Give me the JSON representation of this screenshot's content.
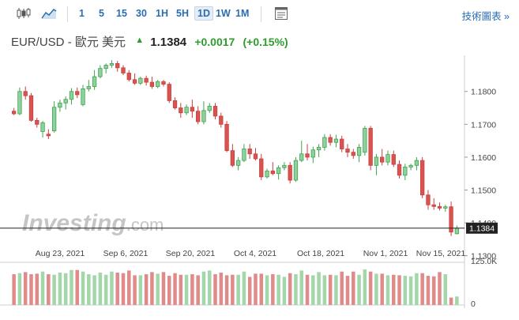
{
  "toolbar": {
    "icons": [
      "candlestick-chart-icon",
      "area-chart-icon",
      "settings-panel-icon"
    ],
    "timeframes": [
      "1",
      "5",
      "15",
      "30",
      "1H",
      "5H",
      "1D",
      "1W",
      "1M"
    ],
    "active_timeframe": "1D",
    "tech_chart_label": "技術圖表 »"
  },
  "header": {
    "pair": "EUR/USD",
    "dash": "-",
    "name": "歐元 美元",
    "price": "1.1384",
    "change": "+0.0017",
    "change_pct": "(+0.15%)",
    "up_color": "#2e9c2e"
  },
  "chart_data": {
    "type": "candlestick",
    "y_ticks": [
      "1.1800",
      "1.1700",
      "1.1600",
      "1.1500",
      "1.1400",
      "1.1300"
    ],
    "ylim": [
      1.128,
      1.191
    ],
    "x_labels": [
      "Aug 23, 2021",
      "Sep 6, 2021",
      "Sep 20, 2021",
      "Oct 4, 2021",
      "Oct 18, 2021",
      "Nov 1, 2021",
      "Nov 15, 2021"
    ],
    "last_price_label": "1.1384",
    "volume_ticks": [
      "125.0K",
      "0"
    ],
    "watermark": "Investing.com",
    "colors": {
      "up": "#3fa34d",
      "down": "#c9403f",
      "up_fill": "#8fd19e",
      "down_fill": "#d9534f",
      "vol_up": "#a3d6a8",
      "vol_down": "#e08b89"
    },
    "candles": [
      [
        1.174,
        1.175,
        1.1728,
        1.1732
      ],
      [
        1.1732,
        1.1812,
        1.1728,
        1.18
      ],
      [
        1.18,
        1.1815,
        1.1775,
        1.1787
      ],
      [
        1.1787,
        1.1795,
        1.1708,
        1.1712
      ],
      [
        1.1712,
        1.172,
        1.169,
        1.17
      ],
      [
        1.1678,
        1.171,
        1.166,
        1.1705
      ],
      [
        1.167,
        1.1685,
        1.1655,
        1.1665
      ],
      [
        1.168,
        1.177,
        1.1675,
        1.1752
      ],
      [
        1.1752,
        1.1775,
        1.1738,
        1.1765
      ],
      [
        1.1765,
        1.1785,
        1.1745,
        1.1776
      ],
      [
        1.1776,
        1.181,
        1.176,
        1.18
      ],
      [
        1.18,
        1.1812,
        1.178,
        1.179
      ],
      [
        1.176,
        1.182,
        1.1755,
        1.1808
      ],
      [
        1.1808,
        1.1835,
        1.18,
        1.1815
      ],
      [
        1.1815,
        1.1865,
        1.1805,
        1.1845
      ],
      [
        1.1845,
        1.188,
        1.184,
        1.187
      ],
      [
        1.187,
        1.1885,
        1.1855,
        1.188
      ],
      [
        1.188,
        1.1895,
        1.1872,
        1.1885
      ],
      [
        1.1885,
        1.1893,
        1.186,
        1.1872
      ],
      [
        1.1872,
        1.188,
        1.185,
        1.1856
      ],
      [
        1.1856,
        1.1865,
        1.183,
        1.1836
      ],
      [
        1.1836,
        1.1855,
        1.182,
        1.1825
      ],
      [
        1.1825,
        1.1845,
        1.182,
        1.184
      ],
      [
        1.184,
        1.1848,
        1.1818,
        1.1828
      ],
      [
        1.1828,
        1.1845,
        1.1808,
        1.1815
      ],
      [
        1.1815,
        1.1835,
        1.181,
        1.183
      ],
      [
        1.183,
        1.1835,
        1.1815,
        1.1822
      ],
      [
        1.1822,
        1.1828,
        1.1765,
        1.1772
      ],
      [
        1.1772,
        1.1782,
        1.1745,
        1.175
      ],
      [
        1.175,
        1.1765,
        1.172,
        1.1735
      ],
      [
        1.1735,
        1.176,
        1.1728,
        1.1752
      ],
      [
        1.1752,
        1.1775,
        1.172,
        1.174
      ],
      [
        1.174,
        1.1755,
        1.17,
        1.1708
      ],
      [
        1.1708,
        1.177,
        1.17,
        1.1742
      ],
      [
        1.1742,
        1.1765,
        1.1735,
        1.1755
      ],
      [
        1.1755,
        1.1765,
        1.1715,
        1.1725
      ],
      [
        1.1725,
        1.1735,
        1.169,
        1.17
      ],
      [
        1.17,
        1.171,
        1.1615,
        1.162
      ],
      [
        1.162,
        1.164,
        1.157,
        1.1575
      ],
      [
        1.1575,
        1.16,
        1.156,
        1.159
      ],
      [
        1.159,
        1.164,
        1.1585,
        1.1625
      ],
      [
        1.1625,
        1.164,
        1.1595,
        1.161
      ],
      [
        1.161,
        1.1628,
        1.159,
        1.1595
      ],
      [
        1.1595,
        1.161,
        1.153,
        1.154
      ],
      [
        1.154,
        1.1565,
        1.1535,
        1.1558
      ],
      [
        1.1558,
        1.1585,
        1.1545,
        1.155
      ],
      [
        1.155,
        1.1575,
        1.1532,
        1.1568
      ],
      [
        1.1568,
        1.1585,
        1.156,
        1.1575
      ],
      [
        1.1575,
        1.1585,
        1.152,
        1.153
      ],
      [
        1.153,
        1.16,
        1.1525,
        1.159
      ],
      [
        1.159,
        1.165,
        1.1585,
        1.161
      ],
      [
        1.161,
        1.164,
        1.159,
        1.16
      ],
      [
        1.16,
        1.1632,
        1.1582,
        1.1622
      ],
      [
        1.1622,
        1.164,
        1.16,
        1.163
      ],
      [
        1.163,
        1.167,
        1.162,
        1.166
      ],
      [
        1.166,
        1.167,
        1.1635,
        1.1645
      ],
      [
        1.1645,
        1.1668,
        1.163,
        1.1655
      ],
      [
        1.1655,
        1.1665,
        1.1615,
        1.1625
      ],
      [
        1.1625,
        1.164,
        1.16,
        1.1615
      ],
      [
        1.1615,
        1.1625,
        1.1595,
        1.1605
      ],
      [
        1.1605,
        1.164,
        1.1585,
        1.163
      ],
      [
        1.1615,
        1.1695,
        1.1605,
        1.1688
      ],
      [
        1.1688,
        1.1695,
        1.156,
        1.1575
      ],
      [
        1.1575,
        1.161,
        1.1545,
        1.16
      ],
      [
        1.16,
        1.1625,
        1.1575,
        1.1585
      ],
      [
        1.1585,
        1.162,
        1.1575,
        1.1608
      ],
      [
        1.1608,
        1.162,
        1.157,
        1.1578
      ],
      [
        1.1578,
        1.159,
        1.1535,
        1.1545
      ],
      [
        1.1545,
        1.158,
        1.153,
        1.157
      ],
      [
        1.157,
        1.158,
        1.156,
        1.1575
      ],
      [
        1.1575,
        1.16,
        1.156,
        1.159
      ],
      [
        1.159,
        1.16,
        1.1475,
        1.1485
      ],
      [
        1.1485,
        1.15,
        1.144,
        1.1455
      ],
      [
        1.1455,
        1.1475,
        1.144,
        1.145
      ],
      [
        1.145,
        1.1462,
        1.1438,
        1.1445
      ],
      [
        1.1445,
        1.1455,
        1.1434,
        1.1449
      ],
      [
        1.1449,
        1.1465,
        1.136,
        1.1372
      ],
      [
        1.1367,
        1.1392,
        1.1365,
        1.1384
      ]
    ],
    "volumes": [
      58,
      60,
      62,
      58,
      59,
      63,
      58,
      57,
      61,
      60,
      66,
      66,
      63,
      58,
      56,
      61,
      57,
      63,
      61,
      60,
      65,
      56,
      56,
      58,
      62,
      59,
      62,
      55,
      60,
      57,
      57,
      58,
      56,
      63,
      65,
      58,
      61,
      56,
      57,
      57,
      63,
      53,
      59,
      59,
      56,
      58,
      57,
      53,
      60,
      58,
      65,
      57,
      56,
      62,
      56,
      57,
      56,
      63,
      55,
      63,
      57,
      67,
      63,
      59,
      59,
      56,
      57,
      56,
      55,
      54,
      60,
      60,
      55,
      54,
      62,
      58,
      14,
      16
    ]
  }
}
